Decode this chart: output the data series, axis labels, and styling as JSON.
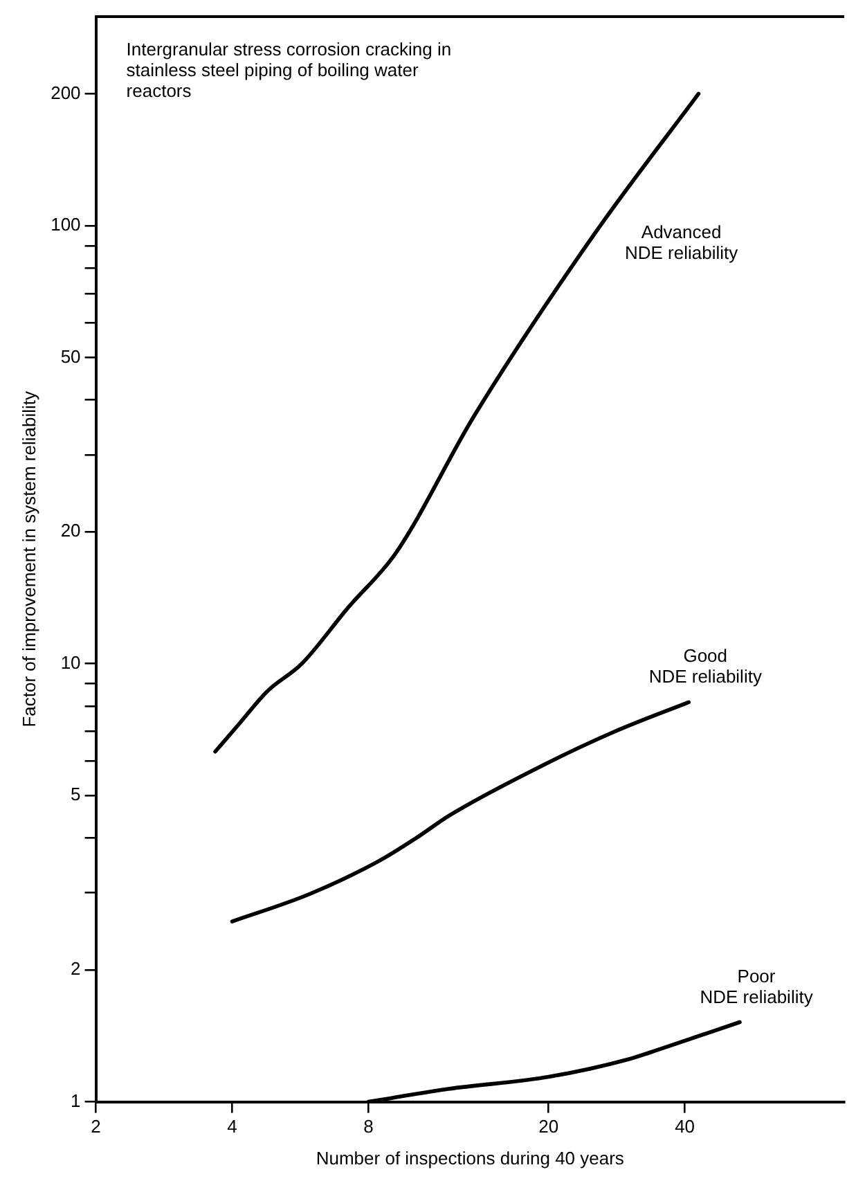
{
  "chart_data": {
    "type": "line",
    "xlabel": "Number of inspections during 40 years",
    "ylabel": "Factor of improvement in system reliability",
    "annotations": [
      "Intergranular stress corrosion cracking in stainless steel piping of boiling water reactors"
    ],
    "log": "xy",
    "grid": false,
    "legend": false,
    "marker": "none",
    "line_style": "solid",
    "xlim": [
      2,
      90
    ],
    "xticks": [
      2,
      4,
      8,
      20,
      40
    ],
    "ylim": [
      1,
      300
    ],
    "yticks": [
      1,
      2,
      {
        "value": 3,
        "label": null
      },
      {
        "value": 4,
        "label": null
      },
      5,
      {
        "value": 6,
        "label": null
      },
      {
        "value": 7,
        "label": null
      },
      {
        "value": 8,
        "label": null
      },
      {
        "value": 9,
        "label": null
      },
      10,
      20,
      {
        "value": 30,
        "label": null
      },
      {
        "value": 40,
        "label": null
      },
      50,
      {
        "value": 60,
        "label": null
      },
      {
        "value": 70,
        "label": null
      },
      {
        "value": 80,
        "label": null
      },
      {
        "value": 90,
        "label": null
      },
      100,
      200
    ],
    "series": [
      {
        "name": "Advanced NDE reliability",
        "color": "#000000",
        "x": [
          3.67,
          4.15,
          4.78,
          5.7,
          7.2,
          9.2,
          13.7,
          25.4,
          42.9
        ],
        "values": [
          6.3,
          7.3,
          8.65,
          10,
          13.4,
          17.9,
          36.8,
          96.5,
          200
        ]
      },
      {
        "name": "Good NDE reliability",
        "color": "#000000",
        "x": [
          4,
          5.93,
          8.46,
          10.2,
          12.1,
          19.6,
          28,
          40.8
        ],
        "values": [
          2.58,
          2.98,
          3.55,
          4.0,
          4.51,
          5.89,
          7.0,
          8.17
        ]
      },
      {
        "name": "Poor NDE reliability",
        "color": "#000000",
        "x": [
          8,
          9,
          12,
          20,
          30,
          35.3,
          52.9
        ],
        "values": [
          1,
          1.02,
          1.07,
          1.14,
          1.25,
          1.32,
          1.52
        ]
      }
    ]
  }
}
